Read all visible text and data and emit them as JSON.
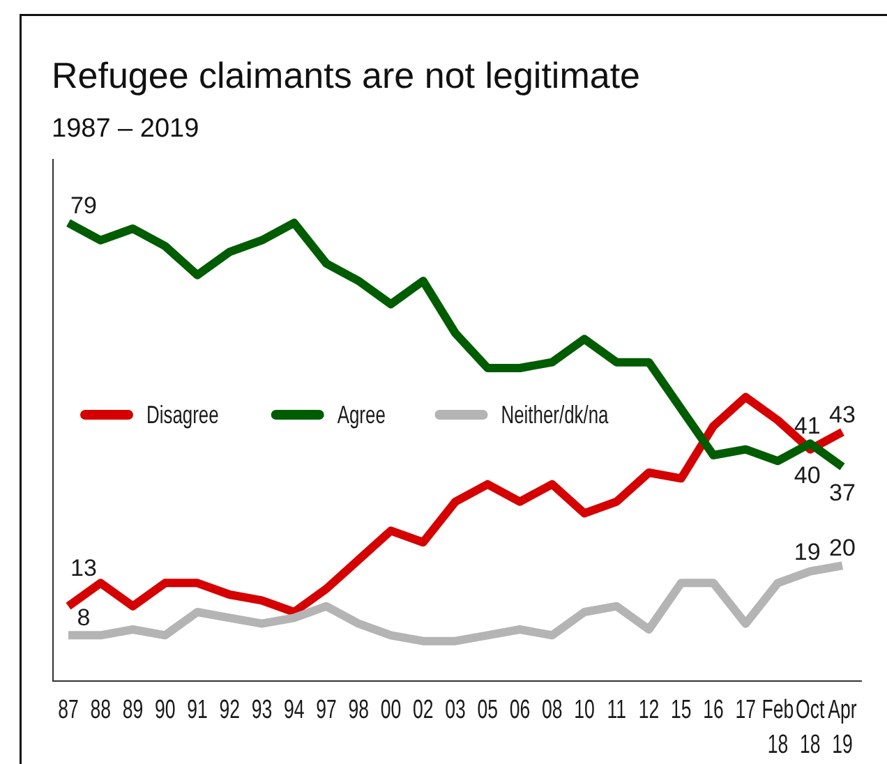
{
  "chart_data": {
    "type": "line",
    "title": "Refugee claimants are not legitimate",
    "subtitle": "1987 – 2019",
    "categories": [
      "87",
      "88",
      "89",
      "90",
      "91",
      "92",
      "93",
      "94",
      "97",
      "98",
      "00",
      "02",
      "03",
      "05",
      "06",
      "08",
      "10",
      "11",
      "12",
      "15",
      "16",
      "17",
      "Feb 18",
      "Oct 18",
      "Apr 19"
    ],
    "series": [
      {
        "name": "Disagree",
        "color": "#d50000",
        "values": [
          13,
          17,
          13,
          17,
          17,
          15,
          14,
          12,
          16,
          21,
          26,
          24,
          31,
          34,
          31,
          34,
          29,
          31,
          36,
          35,
          44,
          49,
          45,
          40,
          43
        ],
        "value_labels": [
          "13",
          null,
          null,
          null,
          null,
          null,
          null,
          null,
          null,
          null,
          null,
          null,
          null,
          null,
          null,
          null,
          null,
          null,
          null,
          null,
          null,
          null,
          null,
          "40",
          "43"
        ]
      },
      {
        "name": "Agree",
        "color": "#005c00",
        "values": [
          79,
          76,
          78,
          75,
          70,
          74,
          76,
          79,
          72,
          69,
          65,
          69,
          60,
          54,
          54,
          55,
          59,
          55,
          55,
          47,
          39,
          40,
          38,
          41,
          37
        ],
        "value_labels": [
          "79",
          null,
          null,
          null,
          null,
          null,
          null,
          null,
          null,
          null,
          null,
          null,
          null,
          null,
          null,
          null,
          null,
          null,
          null,
          null,
          null,
          null,
          null,
          "41",
          "37"
        ]
      },
      {
        "name": "Neither/dk/na",
        "color": "#b4b4b4",
        "values": [
          8,
          8,
          9,
          8,
          12,
          11,
          10,
          11,
          13,
          10,
          8,
          7,
          7,
          8,
          9,
          8,
          12,
          13,
          9,
          17,
          17,
          10,
          17,
          19,
          20
        ],
        "value_labels": [
          "8",
          null,
          null,
          null,
          null,
          null,
          null,
          null,
          null,
          null,
          null,
          null,
          null,
          null,
          null,
          null,
          null,
          null,
          null,
          null,
          null,
          null,
          null,
          "19",
          "20"
        ]
      }
    ],
    "ylim": [
      0,
      90
    ],
    "tick_labels": "x",
    "legend": "left"
  }
}
